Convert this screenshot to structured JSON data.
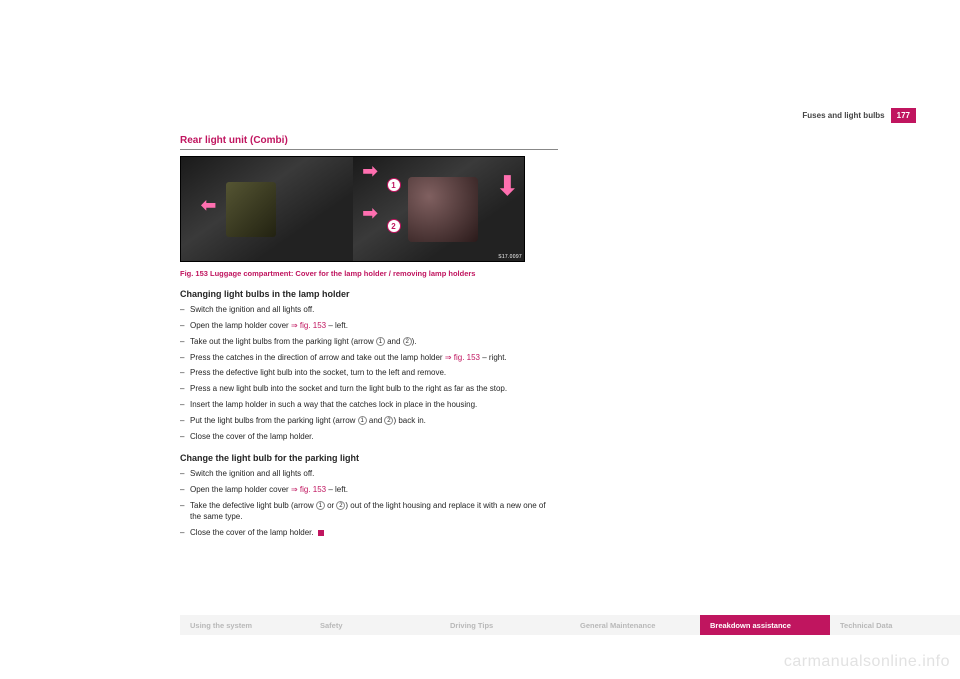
{
  "header": {
    "section": "Fuses and light bulbs",
    "page_number": "177"
  },
  "section_title": "Rear light unit (Combi)",
  "figure": {
    "caption": "Fig. 153   Luggage compartment: Cover for the lamp holder / removing lamp holders",
    "corner_code": "S17.0097",
    "circle_1": "1",
    "circle_2": "2"
  },
  "block1": {
    "heading": "Changing light bulbs in the lamp holder",
    "steps": [
      {
        "pre": "Switch the ignition and all lights off."
      },
      {
        "pre": "Open the lamp holder cover ",
        "ref": "⇒ fig. 153",
        "post": " – left."
      },
      {
        "pre": "Take out the light bulbs from the parking light (arrow ",
        "c1": "1",
        "mid": " and ",
        "c2": "2",
        "post": ")."
      },
      {
        "pre": "Press the catches in the direction of arrow and take out the lamp holder ",
        "ref": "⇒ fig. 153",
        "post": " – right."
      },
      {
        "pre": "Press the defective light bulb into the socket, turn to the left and remove."
      },
      {
        "pre": "Press a new light bulb into the socket and turn the light bulb to the right as far as the stop."
      },
      {
        "pre": "Insert the lamp holder in such a way that the catches lock in place in the housing."
      },
      {
        "pre": "Put the light bulbs from the parking light (arrow ",
        "c1": "1",
        "mid": " and ",
        "c2": "2",
        "post": ") back in."
      },
      {
        "pre": "Close the cover of the lamp holder."
      }
    ]
  },
  "block2": {
    "heading": "Change the light bulb for the parking light",
    "steps": [
      {
        "pre": "Switch the ignition and all lights off."
      },
      {
        "pre": "Open the lamp holder cover ",
        "ref": "⇒ fig. 153",
        "post": " – left."
      },
      {
        "pre": "Take the defective light bulb (arrow ",
        "c1": "1",
        "mid": " or ",
        "c2": "2",
        "post": ") out of the light housing and replace it with a new one of the same type."
      },
      {
        "pre": "Close the cover of the lamp holder. ",
        "end": true
      }
    ]
  },
  "footer": {
    "tabs": [
      "Using the system",
      "Safety",
      "Driving Tips",
      "General Maintenance",
      "Breakdown assistance",
      "Technical Data"
    ],
    "active_index": 4
  },
  "watermark": "carmanualsonline.info",
  "colors": {
    "brand": "#c0155f",
    "text": "#262626",
    "muted": "#b9b9b9"
  }
}
